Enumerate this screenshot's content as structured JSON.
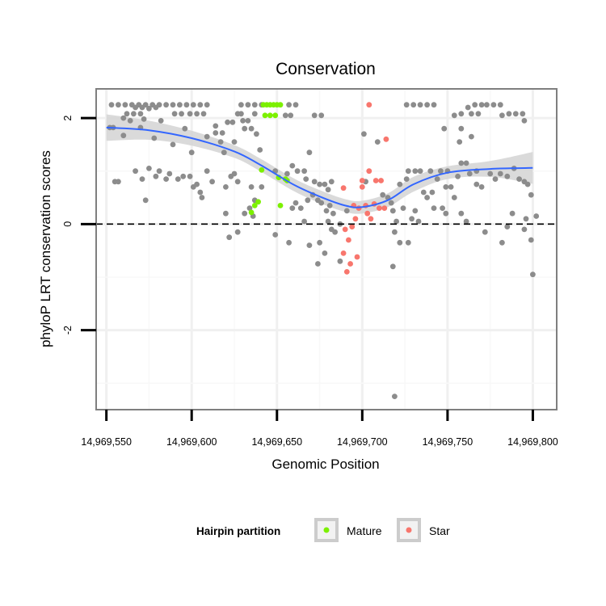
{
  "chart_data": {
    "type": "scatter",
    "title": "Conservation",
    "xlabel": "Genomic Position",
    "ylabel": "phyloP LRT conservation scores",
    "xlim": [
      14969544,
      14969814
    ],
    "ylim": [
      -3.5,
      2.55
    ],
    "x_ticks": [
      14969550,
      14969600,
      14969650,
      14969700,
      14969750,
      14969800
    ],
    "x_tick_labels": [
      "14,969,550",
      "14,969,600",
      "14,969,650",
      "14,969,700",
      "14,969,750",
      "14,969,800"
    ],
    "y_ticks": [
      -2,
      0,
      2
    ],
    "y_tick_labels": [
      "-2",
      "0",
      "2"
    ],
    "reference_line": {
      "y": 0,
      "style": "dashed"
    },
    "legend": {
      "title": "Hairpin partition",
      "position": "bottom",
      "entries": [
        {
          "label": "Mature",
          "color": "#7cf000"
        },
        {
          "label": "Star",
          "color": "#f8766d"
        }
      ]
    },
    "colors": {
      "other": "#8c8c8c",
      "mature": "#7cf000",
      "star": "#f8766d",
      "smooth": "#3366ff",
      "band": "#d3d3d3"
    },
    "smooth": {
      "x": [
        14969550,
        14969575,
        14969600,
        14969625,
        14969640,
        14969660,
        14969675,
        14969690,
        14969700,
        14969715,
        14969730,
        14969750,
        14969775,
        14969800
      ],
      "y": [
        1.82,
        1.77,
        1.62,
        1.37,
        1.12,
        0.74,
        0.52,
        0.35,
        0.32,
        0.45,
        0.75,
        0.97,
        1.04,
        1.06
      ],
      "band": [
        0.25,
        0.18,
        0.14,
        0.12,
        0.12,
        0.12,
        0.12,
        0.12,
        0.12,
        0.13,
        0.14,
        0.12,
        0.15,
        0.3
      ]
    },
    "series": [
      {
        "name": "Other",
        "points": [
          [
            14969553,
            2.25
          ],
          [
            14969557,
            2.25
          ],
          [
            14969561,
            2.25
          ],
          [
            14969565,
            2.25
          ],
          [
            14969569,
            2.25
          ],
          [
            14969573,
            2.25
          ],
          [
            14969577,
            2.25
          ],
          [
            14969581,
            2.25
          ],
          [
            14969585,
            2.25
          ],
          [
            14969589,
            2.25
          ],
          [
            14969593,
            2.25
          ],
          [
            14969597,
            2.25
          ],
          [
            14969601,
            2.25
          ],
          [
            14969605,
            2.25
          ],
          [
            14969609,
            2.25
          ],
          [
            14969562,
            2.08
          ],
          [
            14969566,
            2.08
          ],
          [
            14969570,
            2.08
          ],
          [
            14969590,
            2.08
          ],
          [
            14969594,
            2.08
          ],
          [
            14969599,
            2.08
          ],
          [
            14969603,
            2.08
          ],
          [
            14969607,
            2.08
          ],
          [
            14969567,
            2.2
          ],
          [
            14969571,
            2.2
          ],
          [
            14969575,
            2.18
          ],
          [
            14969579,
            2.2
          ],
          [
            14969560,
            2.0
          ],
          [
            14969564,
            1.95
          ],
          [
            14969572,
            1.98
          ],
          [
            14969552,
            1.82
          ],
          [
            14969554,
            1.82
          ],
          [
            14969570,
            1.82
          ],
          [
            14969582,
            1.95
          ],
          [
            14969596,
            1.8
          ],
          [
            14969614,
            1.85
          ],
          [
            14969560,
            1.67
          ],
          [
            14969578,
            1.62
          ],
          [
            14969589,
            1.5
          ],
          [
            14969600,
            1.35
          ],
          [
            14969609,
            1.65
          ],
          [
            14969614,
            1.72
          ],
          [
            14969618,
            1.72
          ],
          [
            14969621,
            1.92
          ],
          [
            14969624,
            1.92
          ],
          [
            14969627,
            2.08
          ],
          [
            14969629,
            2.08
          ],
          [
            14969630,
            1.95
          ],
          [
            14969633,
            1.95
          ],
          [
            14969637,
            2.08
          ],
          [
            14969617,
            1.55
          ],
          [
            14969619,
            1.35
          ],
          [
            14969625,
            1.55
          ],
          [
            14969631,
            1.8
          ],
          [
            14969635,
            1.8
          ],
          [
            14969638,
            1.7
          ],
          [
            14969640,
            1.4
          ],
          [
            14969629,
            2.25
          ],
          [
            14969633,
            2.25
          ],
          [
            14969637,
            2.25
          ],
          [
            14969641,
            2.25
          ],
          [
            14969657,
            2.25
          ],
          [
            14969661,
            2.25
          ],
          [
            14969655,
            2.05
          ],
          [
            14969658,
            2.05
          ],
          [
            14969672,
            2.05
          ],
          [
            14969676,
            2.05
          ],
          [
            14969649,
            1.0
          ],
          [
            14969656,
            0.95
          ],
          [
            14969659,
            1.1
          ],
          [
            14969662,
            1.0
          ],
          [
            14969666,
            1.0
          ],
          [
            14969667,
            0.85
          ],
          [
            14969669,
            1.35
          ],
          [
            14969672,
            0.8
          ],
          [
            14969675,
            0.75
          ],
          [
            14969678,
            0.75
          ],
          [
            14969680,
            0.65
          ],
          [
            14969682,
            0.8
          ],
          [
            14969668,
            0.45
          ],
          [
            14969671,
            0.55
          ],
          [
            14969674,
            0.45
          ],
          [
            14969676,
            0.4
          ],
          [
            14969679,
            0.25
          ],
          [
            14969681,
            0.35
          ],
          [
            14969683,
            0.2
          ],
          [
            14969659,
            0.3
          ],
          [
            14969661,
            0.4
          ],
          [
            14969664,
            0.3
          ],
          [
            14969666,
            0.05
          ],
          [
            14969669,
            -0.4
          ],
          [
            14969675,
            -0.35
          ],
          [
            14969678,
            -0.55
          ],
          [
            14969680,
            0.05
          ],
          [
            14969682,
            -0.1
          ],
          [
            14969684,
            -0.15
          ],
          [
            14969687,
            0.0
          ],
          [
            14969691,
            0.25
          ],
          [
            14969674,
            -0.75
          ],
          [
            14969687,
            -0.7
          ],
          [
            14969657,
            -0.35
          ],
          [
            14969649,
            -0.2
          ],
          [
            14969555,
            0.8
          ],
          [
            14969557,
            0.8
          ],
          [
            14969567,
            1.0
          ],
          [
            14969571,
            0.85
          ],
          [
            14969575,
            1.05
          ],
          [
            14969579,
            0.9
          ],
          [
            14969581,
            1.0
          ],
          [
            14969585,
            0.85
          ],
          [
            14969587,
            0.95
          ],
          [
            14969592,
            0.85
          ],
          [
            14969595,
            0.9
          ],
          [
            14969599,
            0.9
          ],
          [
            14969573,
            0.45
          ],
          [
            14969601,
            0.7
          ],
          [
            14969603,
            0.75
          ],
          [
            14969605,
            0.6
          ],
          [
            14969606,
            0.5
          ],
          [
            14969609,
            1.0
          ],
          [
            14969612,
            0.8
          ],
          [
            14969620,
            0.7
          ],
          [
            14969623,
            0.9
          ],
          [
            14969625,
            0.95
          ],
          [
            14969627,
            0.8
          ],
          [
            14969620,
            0.2
          ],
          [
            14969622,
            -0.25
          ],
          [
            14969627,
            -0.15
          ],
          [
            14969635,
            0.7
          ],
          [
            14969637,
            0.45
          ],
          [
            14969631,
            0.2
          ],
          [
            14969634,
            0.3
          ],
          [
            14969636,
            0.15
          ],
          [
            14969641,
            0.7
          ],
          [
            14969701,
            1.7
          ],
          [
            14969709,
            1.55
          ],
          [
            14969702,
            0.8
          ],
          [
            14969712,
            0.55
          ],
          [
            14969715,
            0.5
          ],
          [
            14969717,
            0.4
          ],
          [
            14969718,
            0.25
          ],
          [
            14969719,
            -0.15
          ],
          [
            14969720,
            0.05
          ],
          [
            14969722,
            0.75
          ],
          [
            14969724,
            0.3
          ],
          [
            14969726,
            0.85
          ],
          [
            14969722,
            -0.35
          ],
          [
            14969727,
            -0.35
          ],
          [
            14969718,
            -0.8
          ],
          [
            14969729,
            0.1
          ],
          [
            14969731,
            0.25
          ],
          [
            14969733,
            0.05
          ],
          [
            14969736,
            0.6
          ],
          [
            14969738,
            0.5
          ],
          [
            14969741,
            0.6
          ],
          [
            14969742,
            0.3
          ],
          [
            14969744,
            0.85
          ],
          [
            14969747,
            0.3
          ],
          [
            14969749,
            0.2
          ],
          [
            14969719,
            -3.25
          ],
          [
            14969718,
            0.25
          ],
          [
            14969727,
            1.0
          ],
          [
            14969731,
            1.0
          ],
          [
            14969734,
            1.0
          ],
          [
            14969740,
            1.0
          ],
          [
            14969746,
            1.0
          ],
          [
            14969750,
            1.0
          ],
          [
            14969752,
            0.7
          ],
          [
            14969756,
            0.9
          ],
          [
            14969758,
            1.15
          ],
          [
            14969761,
            1.15
          ],
          [
            14969763,
            0.95
          ],
          [
            14969767,
            1.0
          ],
          [
            14969770,
            0.7
          ],
          [
            14969775,
            0.95
          ],
          [
            14969778,
            0.85
          ],
          [
            14969781,
            0.95
          ],
          [
            14969785,
            0.9
          ],
          [
            14969789,
            1.05
          ],
          [
            14969795,
            0.8
          ],
          [
            14969799,
            0.55
          ],
          [
            14969749,
            0.7
          ],
          [
            14969754,
            0.5
          ],
          [
            14969758,
            0.2
          ],
          [
            14969761,
            0.05
          ],
          [
            14969767,
            0.75
          ],
          [
            14969772,
            -0.15
          ],
          [
            14969782,
            -0.35
          ],
          [
            14969785,
            -0.05
          ],
          [
            14969788,
            0.2
          ],
          [
            14969792,
            0.85
          ],
          [
            14969796,
            0.1
          ],
          [
            14969799,
            -0.3
          ],
          [
            14969800,
            -0.95
          ],
          [
            14969802,
            0.15
          ],
          [
            14969797,
            0.75
          ],
          [
            14969795,
            -0.1
          ],
          [
            14969726,
            2.25
          ],
          [
            14969730,
            2.25
          ],
          [
            14969734,
            2.25
          ],
          [
            14969738,
            2.25
          ],
          [
            14969742,
            2.25
          ],
          [
            14969754,
            2.05
          ],
          [
            14969758,
            2.08
          ],
          [
            14969762,
            2.2
          ],
          [
            14969766,
            2.25
          ],
          [
            14969770,
            2.25
          ],
          [
            14969773,
            2.25
          ],
          [
            14969777,
            2.25
          ],
          [
            14969781,
            2.25
          ],
          [
            14969764,
            2.08
          ],
          [
            14969768,
            2.08
          ],
          [
            14969782,
            2.05
          ],
          [
            14969786,
            2.08
          ],
          [
            14969790,
            2.08
          ],
          [
            14969794,
            2.08
          ],
          [
            14969758,
            1.8
          ],
          [
            14969764,
            1.65
          ],
          [
            14969795,
            1.95
          ],
          [
            14969748,
            1.8
          ],
          [
            14969757,
            1.55
          ]
        ]
      },
      {
        "name": "Mature",
        "points": [
          [
            14969642,
            2.25
          ],
          [
            14969644,
            2.25
          ],
          [
            14969646,
            2.25
          ],
          [
            14969648,
            2.25
          ],
          [
            14969650,
            2.25
          ],
          [
            14969652,
            2.25
          ],
          [
            14969643,
            2.05
          ],
          [
            14969646,
            2.05
          ],
          [
            14969649,
            2.05
          ],
          [
            14969641,
            1.02
          ],
          [
            14969651,
            0.88
          ],
          [
            14969655,
            0.85
          ],
          [
            14969656,
            0.82
          ],
          [
            14969637,
            0.35
          ],
          [
            14969639,
            0.42
          ],
          [
            14969652,
            0.35
          ],
          [
            14969635,
            0.22
          ]
        ]
      },
      {
        "name": "Star",
        "points": [
          [
            14969704,
            2.25
          ],
          [
            14969714,
            1.6
          ],
          [
            14969704,
            1.0
          ],
          [
            14969700,
            0.82
          ],
          [
            14969708,
            0.82
          ],
          [
            14969711,
            0.82
          ],
          [
            14969700,
            0.7
          ],
          [
            14969689,
            0.68
          ],
          [
            14969695,
            0.35
          ],
          [
            14969702,
            0.35
          ],
          [
            14969707,
            0.38
          ],
          [
            14969710,
            0.3
          ],
          [
            14969713,
            0.3
          ],
          [
            14969698,
            0.3
          ],
          [
            14969703,
            0.2
          ],
          [
            14969705,
            0.1
          ],
          [
            14969696,
            0.1
          ],
          [
            14969694,
            -0.05
          ],
          [
            14969690,
            -0.1
          ],
          [
            14969692,
            -0.3
          ],
          [
            14969689,
            -0.55
          ],
          [
            14969693,
            -0.75
          ],
          [
            14969697,
            -0.62
          ],
          [
            14969691,
            -0.9
          ]
        ]
      }
    ]
  }
}
